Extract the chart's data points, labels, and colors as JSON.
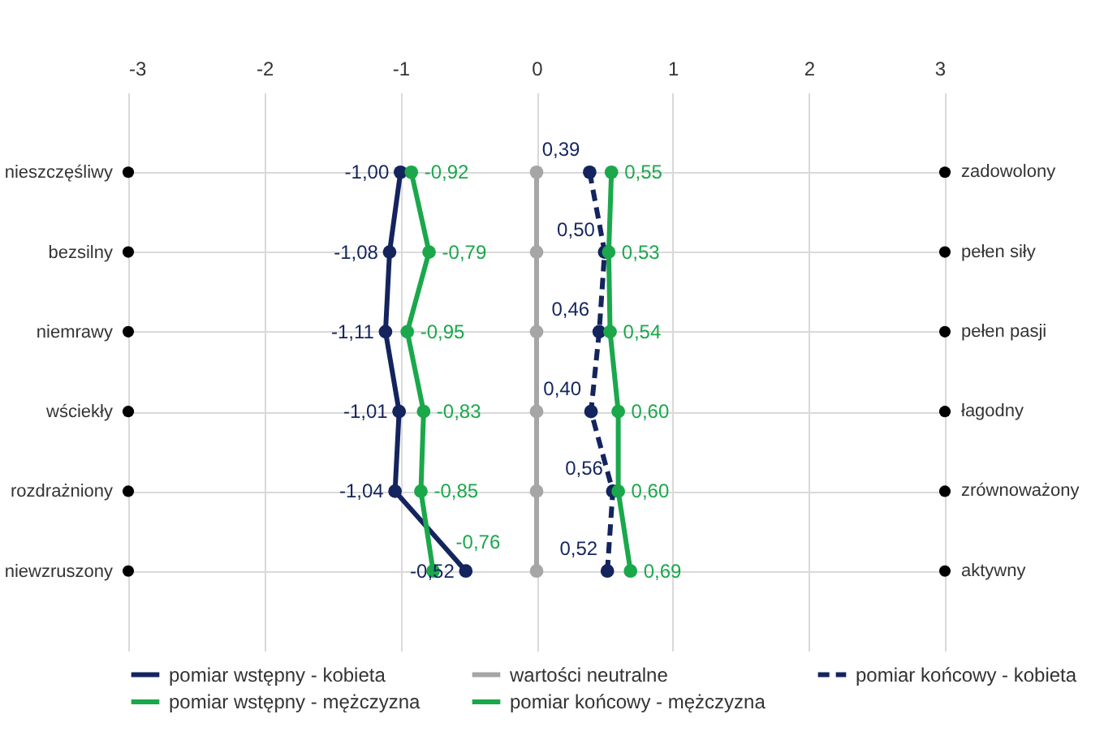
{
  "chart_data": {
    "type": "line",
    "orientation": "horizontal",
    "categories": [
      "nieszczęśliwy",
      "bezsilny",
      "niemrawy",
      "wściekły",
      "rozdrażniony",
      "niewzruszony"
    ],
    "y2_categories": [
      "zadowolony",
      "pełen siły",
      "pełen pasji",
      "łagodny",
      "zrównoważony",
      "aktywny"
    ],
    "xlim": [
      -3,
      3
    ],
    "xticks": [
      -3,
      -2,
      -1,
      0,
      1,
      2,
      3
    ],
    "grid": true,
    "legend": "bottom",
    "marker": "circle",
    "series": [
      {
        "name": "pomiar wstępny - kobieta",
        "color": "#14245e",
        "values": [
          -1.0,
          -1.08,
          -1.11,
          -1.01,
          -1.04,
          -0.52
        ],
        "value_labels": [
          "-1,00",
          "-1,08",
          "-1,11",
          "-1,01",
          "-1,04",
          "-0,52"
        ]
      },
      {
        "name": "wartości neutralne",
        "color": "#a6a6a6",
        "values": [
          0,
          0,
          0,
          0,
          0,
          0
        ]
      },
      {
        "name": "pomiar końcowy - kobieta",
        "color": "#14245e",
        "line_style": "dashed",
        "values": [
          0.39,
          0.5,
          0.46,
          0.4,
          0.56,
          0.52
        ],
        "value_labels": [
          "0,39",
          "0,50",
          "0,46",
          "0,40",
          "0,56",
          "0,52"
        ]
      },
      {
        "name": "pomiar wstępny - mężczyzna",
        "color": "#1aa84b",
        "values": [
          -0.92,
          -0.79,
          -0.95,
          -0.83,
          -0.85,
          -0.76
        ],
        "value_labels": [
          "-0,92",
          "-0,79",
          "-0,95",
          "-0,83",
          "-0,85",
          "-0,76"
        ]
      },
      {
        "name": "pomiar końcowy - mężczyzna",
        "color": "#1aa84b",
        "values": [
          0.55,
          0.53,
          0.54,
          0.6,
          0.6,
          0.69
        ],
        "value_labels": [
          "0,55",
          "0,53",
          "0,54",
          "0,60",
          "0,60",
          "0,69"
        ]
      },
      {
        "type": "scatter",
        "color": "#000000",
        "values": [
          -3,
          -3,
          -3,
          -3,
          -3,
          -3
        ]
      },
      {
        "type": "scatter",
        "color": "#000000",
        "values": [
          3,
          3,
          3,
          3,
          3,
          3
        ]
      }
    ]
  }
}
